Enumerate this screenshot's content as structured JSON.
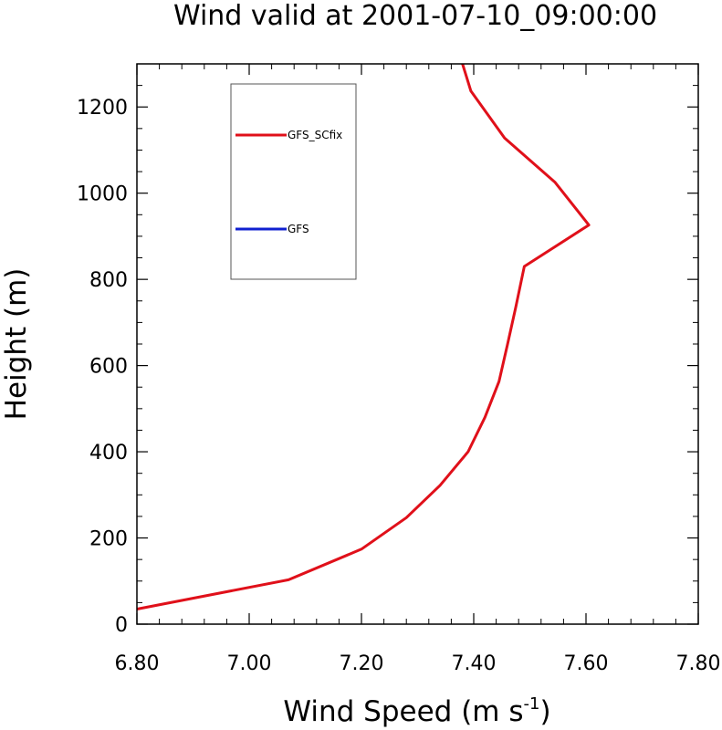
{
  "chart_data": {
    "type": "line",
    "title": "Wind valid at 2001-07-10_09:00:00",
    "xlabel": "Wind Speed (m s",
    "xlabel_unit_superscript": "-1",
    "xlabel_close": ")",
    "ylabel": "Height (m)",
    "xlim": [
      6.8,
      7.8
    ],
    "ylim": [
      0,
      1300
    ],
    "x_ticks": [
      6.8,
      7.0,
      7.2,
      7.4,
      7.6,
      7.8
    ],
    "x_tick_labels": [
      "6.80",
      "7.00",
      "7.20",
      "7.40",
      "7.60",
      "7.80"
    ],
    "y_ticks": [
      0,
      200,
      400,
      600,
      800,
      1000,
      1200
    ],
    "y_tick_labels": [
      "0",
      "200",
      "400",
      "600",
      "800",
      "1000",
      "1200"
    ],
    "grid": false,
    "legend_position": "top-left",
    "series": [
      {
        "name": "GFS_SCfix",
        "color": "#e0101a",
        "points": [
          [
            6.8,
            35
          ],
          [
            7.07,
            103
          ],
          [
            7.2,
            174
          ],
          [
            7.28,
            247
          ],
          [
            7.34,
            322
          ],
          [
            7.39,
            400
          ],
          [
            7.42,
            480
          ],
          [
            7.445,
            563
          ],
          [
            7.46,
            648
          ],
          [
            7.475,
            736
          ],
          [
            7.49,
            830
          ],
          [
            7.605,
            926
          ],
          [
            7.545,
            1025
          ],
          [
            7.455,
            1128
          ],
          [
            7.395,
            1237
          ],
          [
            7.38,
            1300
          ]
        ]
      },
      {
        "name": "GFS",
        "color": "#1020d0",
        "points": []
      }
    ]
  }
}
